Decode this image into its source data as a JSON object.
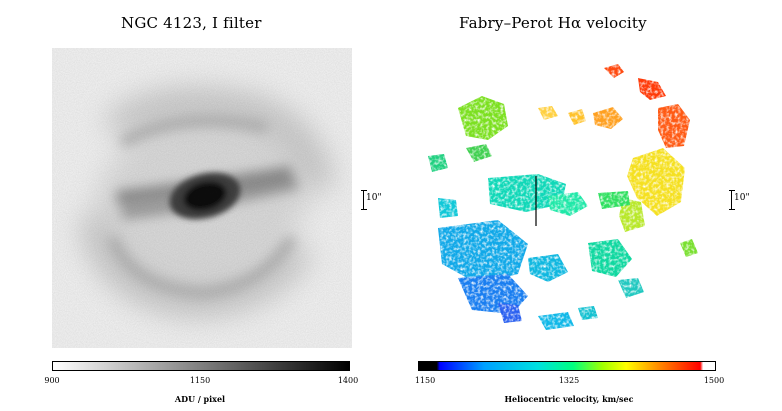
{
  "left": {
    "title": "NGC 4123, I filter",
    "colorbar_label": "ADU / pixel",
    "ticks": [
      "900",
      "1150",
      "1400"
    ],
    "scale_label": "10\""
  },
  "right": {
    "title": "Fabry–Perot Hα velocity",
    "colorbar_label": "Heliocentric velocity, km/sec",
    "ticks": [
      "1150",
      "1325",
      "1500"
    ],
    "scale_label": "10\""
  }
}
